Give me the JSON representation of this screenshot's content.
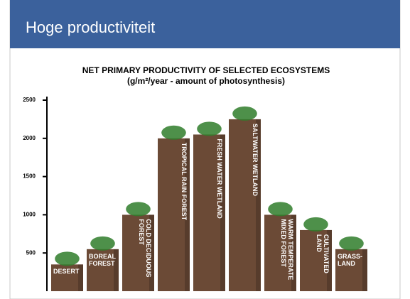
{
  "slide_title": "Hoge productiviteit",
  "chart_data": {
    "type": "bar",
    "title": "NET PRIMARY PRODUCTIVITY OF SELECTED ECOSYSTEMS",
    "subtitle": "(g/m²/year - amount of photosynthesis)",
    "categories": [
      "DESERT",
      "BOREAL FOREST",
      "COLD DECIDUOUS FOREST",
      "TROPICAL RAIN FOREST",
      "FRESH WATER WETLAND",
      "SALTWATER WETLAND",
      "WARM TEMPERATE MIXED FOREST",
      "CULTIVATED LAND",
      "GRASS-LAND"
    ],
    "values": [
      350,
      550,
      1000,
      2000,
      2050,
      2250,
      1000,
      800,
      550
    ],
    "color": "#6b4a36",
    "ylim": [
      0,
      2500
    ],
    "yticks": [
      500,
      1000,
      1500,
      2000,
      2500
    ]
  }
}
